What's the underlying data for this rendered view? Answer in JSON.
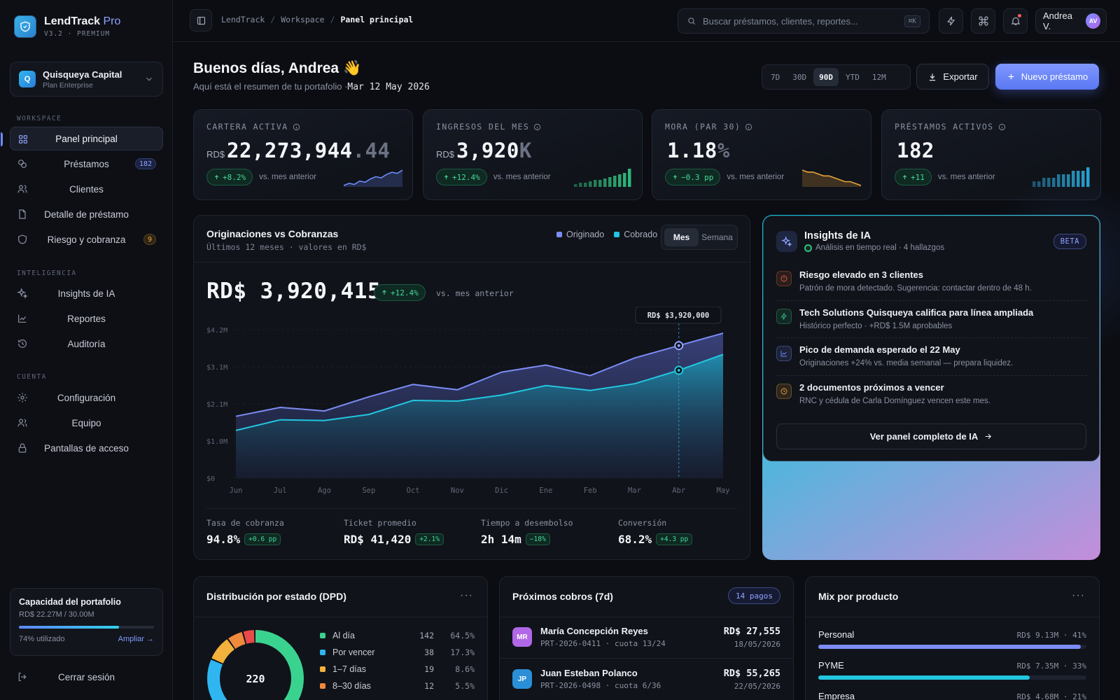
{
  "brand": {
    "name": "LendTrack",
    "tier": "Pro",
    "version": "V3.2 · PREMIUM"
  },
  "org": {
    "initial": "Q",
    "name": "Quisqueya Capital",
    "plan": "Plan Enterprise"
  },
  "nav": {
    "workspace_label": "WORKSPACE",
    "workspace": [
      {
        "label": "Panel principal",
        "icon": "grid-icon",
        "active": true
      },
      {
        "label": "Préstamos",
        "icon": "coins-icon",
        "count": "182"
      },
      {
        "label": "Clientes",
        "icon": "users-icon"
      },
      {
        "label": "Detalle de préstamo",
        "icon": "file-icon"
      },
      {
        "label": "Riesgo y cobranza",
        "icon": "shield-icon",
        "count": "9"
      }
    ],
    "intel_label": "INTELIGENCIA",
    "intel": [
      {
        "label": "Insights de IA",
        "icon": "sparkle-icon"
      },
      {
        "label": "Reportes",
        "icon": "chart-line-icon"
      },
      {
        "label": "Auditoría",
        "icon": "history-icon"
      }
    ],
    "account_label": "CUENTA",
    "account": [
      {
        "label": "Configuración",
        "icon": "gear-icon"
      },
      {
        "label": "Equipo",
        "icon": "team-icon"
      },
      {
        "label": "Pantallas de acceso",
        "icon": "lock-icon"
      }
    ]
  },
  "capacity": {
    "title": "Capacidad del portafolio",
    "amount": "RD$ 22.27M / 30.00M",
    "used_label": "74% utilizado",
    "used_fraction": 0.74,
    "action": "Ampliar →"
  },
  "logout": "Cerrar sesión",
  "topbar": {
    "breadcrumb": [
      "LendTrack",
      "Workspace",
      "Panel principal"
    ],
    "search_placeholder": "Buscar préstamos, clientes, reportes...",
    "search_shortcut": "⌘K",
    "user_name": "Andrea V.",
    "user_initials": "AV"
  },
  "header": {
    "greeting": "Buenos días, Andrea 👋",
    "subtitle": "Aquí está el resumen de tu portafolio ·",
    "date": "Mar 12 May 2026",
    "ranges": [
      "7D",
      "30D",
      "90D",
      "YTD",
      "12M"
    ],
    "selected_range": "90D",
    "export_label": "Exportar",
    "new_label": "Nuevo préstamo"
  },
  "kpis": [
    {
      "label": "CARTERA ACTIVA",
      "prefix": "RD$",
      "value": "22,273,944",
      "suffix": ".44",
      "delta": "+8.2%",
      "vs": "vs. mes anterior",
      "color": "#6f8cff",
      "spark": [
        10,
        12,
        11,
        14,
        13,
        16,
        18,
        17,
        20,
        22,
        21,
        24
      ]
    },
    {
      "label": "INGRESOS DEL MES",
      "prefix": "RD$",
      "value": "3,920",
      "suffix": "K",
      "delta": "+12.4%",
      "vs": "vs. mes anterior",
      "color": "#2fbf7f",
      "spark": [
        4,
        5,
        5,
        6,
        7,
        7,
        8,
        9,
        10,
        11,
        12,
        15
      ]
    },
    {
      "label": "MORA (PAR 30)",
      "prefix": "",
      "value": "1.18",
      "suffix": "%",
      "delta": "−0.3 pp",
      "vs": "vs. mes anterior",
      "color": "#e8a43a",
      "spark": [
        24,
        23,
        23,
        22,
        21,
        21,
        20,
        19,
        18,
        18,
        17,
        16
      ]
    },
    {
      "label": "PRÉSTAMOS ACTIVOS",
      "prefix": "",
      "value": "182",
      "suffix": "",
      "delta": "+11",
      "vs": "vs. mes anterior",
      "color": "#2aa8d8",
      "spark": [
        14,
        14,
        15,
        15,
        15,
        16,
        16,
        16,
        17,
        17,
        17,
        18
      ]
    }
  ],
  "chart_card": {
    "title": "Originaciones vs Cobranzas",
    "subtitle": "Últimos 12 meses · valores en RD$",
    "total": "RD$ 3,920,415",
    "delta": "+12.4%",
    "vs": "vs. mes anterior",
    "toggle": [
      "Mes",
      "Semana"
    ],
    "toggle_selected": "Mes",
    "tooltip": "RD$ $3,920,000",
    "stats": [
      {
        "label": "Tasa de cobranza",
        "value": "94.8%",
        "delta": "+0.6 pp"
      },
      {
        "label": "Ticket promedio",
        "value": "RD$ 41,420",
        "delta": "+2.1%"
      },
      {
        "label": "Tiempo a desembolso",
        "value": "2h 14m",
        "delta": "−18%"
      },
      {
        "label": "Conversión",
        "value": "68.2%",
        "delta": "+4.3 pp"
      }
    ]
  },
  "chart_data": {
    "type": "area",
    "categories": [
      "Jun",
      "Jul",
      "Ago",
      "Sep",
      "Oct",
      "Nov",
      "Dic",
      "Ene",
      "Feb",
      "Mar",
      "Abr",
      "May"
    ],
    "series": [
      {
        "name": "Originado",
        "color": "#7b8cf5",
        "values": [
          1.75,
          2.0,
          1.9,
          2.3,
          2.65,
          2.5,
          3.0,
          3.2,
          2.9,
          3.4,
          3.75,
          4.1
        ]
      },
      {
        "name": "Cobrado",
        "color": "#22c7df",
        "values": [
          1.35,
          1.65,
          1.63,
          1.8,
          2.2,
          2.18,
          2.35,
          2.62,
          2.48,
          2.67,
          3.05,
          3.5
        ]
      }
    ],
    "yticks": [
      "$0",
      "$1.0M",
      "$2.1M",
      "$3.1M",
      "$4.2M"
    ],
    "ylim": [
      0,
      4.2
    ],
    "ylabel_unit": "M",
    "highlight": "Abr",
    "grid": true
  },
  "ai": {
    "title": "Insights de IA",
    "subtitle": "Análisis en tiempo real · 4 hallazgos",
    "badge": "BETA",
    "items": [
      {
        "title": "Riesgo elevado en 3 clientes",
        "text": "Patrón de mora detectado. Sugerencia: contactar dentro de 48 h.",
        "tone": "#e0603a",
        "icon": "alert-icon"
      },
      {
        "title": "Tech Solutions Quisqueya califica para línea ampliada",
        "text": "Histórico perfecto · +RD$ 1.5M aprobables",
        "tone": "#2fbf7f",
        "icon": "bolt-icon"
      },
      {
        "title": "Pico de demanda esperado el 22 May",
        "text": "Originaciones +24% vs. media semanal — prepara liquidez.",
        "tone": "#6f8cff",
        "icon": "trend-icon"
      },
      {
        "title": "2 documentos próximos a vencer",
        "text": "RNC y cédula de Carla Domínguez vencen este mes.",
        "tone": "#e8a43a",
        "icon": "clock-icon"
      }
    ],
    "cta": "Ver panel completo de IA"
  },
  "dpd": {
    "title": "Distribución por estado (DPD)",
    "total": "220",
    "rows": [
      {
        "label": "Al día",
        "count": "142",
        "pct": "64.5%",
        "color": "#3ad28f"
      },
      {
        "label": "Por vencer",
        "count": "38",
        "pct": "17.3%",
        "color": "#2fb6f0"
      },
      {
        "label": "1–7 días",
        "count": "19",
        "pct": "8.6%",
        "color": "#f2b23c"
      },
      {
        "label": "8–30 días",
        "count": "12",
        "pct": "5.5%",
        "color": "#f08a3c"
      }
    ],
    "hidden_segments": [
      {
        "count": 9,
        "color": "#e84a4a"
      }
    ]
  },
  "payments": {
    "title": "Próximos cobros (7d)",
    "badge": "14 pagos",
    "rows": [
      {
        "initials": "MR",
        "name": "María Concepción Reyes",
        "ref": "PRT-2026-0411 · cuota 13/24",
        "amount": "RD$ 27,555",
        "date": "18/05/2026",
        "color": "#b067e8"
      },
      {
        "initials": "JP",
        "name": "Juan Esteban Polanco",
        "ref": "PRT-2026-0498 · cuota 6/36",
        "amount": "RD$ 55,265",
        "date": "22/05/2026",
        "color": "#2a8fd8"
      }
    ]
  },
  "mix": {
    "title": "Mix por producto",
    "rows": [
      {
        "name": "Personal",
        "value": "RD$ 9.13M · 41%",
        "fraction": 0.41,
        "color": "#7b8cf5"
      },
      {
        "name": "PYME",
        "value": "RD$ 7.35M · 33%",
        "fraction": 0.33,
        "color": "#22c7df"
      },
      {
        "name": "Empresa",
        "value": "RD$ 4.68M · 21%",
        "fraction": 0.21,
        "color": "#b067e8"
      }
    ]
  }
}
